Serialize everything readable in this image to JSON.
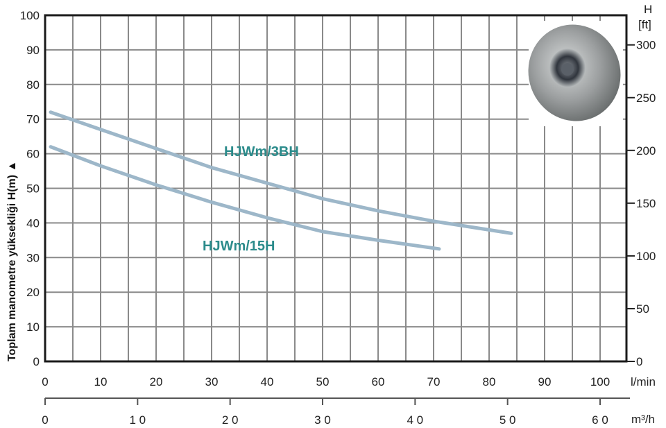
{
  "chart_data": {
    "type": "line",
    "ylabel": "Toplam manometre yüksekliği  H(m) ▲",
    "xlabel": "l/min",
    "x2label": "m³/h",
    "y2label_line1": "H",
    "y2label_line2": "[ft]",
    "xlim": [
      0,
      105
    ],
    "ylim": [
      0,
      100
    ],
    "x_ticks": [
      "0",
      "10",
      "20",
      "30",
      "40",
      "50",
      "60",
      "70",
      "80",
      "90",
      "100"
    ],
    "y_ticks": [
      "0",
      "10",
      "20",
      "30",
      "40",
      "50",
      "60",
      "70",
      "80",
      "90",
      "100"
    ],
    "y2_ticks": [
      "0",
      "50",
      "100",
      "150",
      "200",
      "250",
      "300"
    ],
    "x2_ticks": [
      "0",
      "1 0",
      "2 0",
      "3 0",
      "4 0",
      "5 0",
      "6 0"
    ],
    "x2_tick_values_m3h": [
      0,
      10,
      20,
      30,
      40,
      50,
      60
    ],
    "x2_full_scale_lmin": 100,
    "grid": true,
    "grid_x_step_lmin": 5,
    "grid_y_step_m": 10,
    "line_color": "#9db7c9",
    "label_color": "#2b8b8b",
    "series": [
      {
        "name": "HJWm/3BH",
        "x": [
          1,
          10,
          20,
          30,
          40,
          50,
          60,
          70,
          80,
          84
        ],
        "y": [
          72,
          67,
          61.5,
          56,
          51.5,
          47,
          43.5,
          40.5,
          38,
          37
        ]
      },
      {
        "name": "HJWm/15H",
        "x": [
          1,
          10,
          20,
          30,
          40,
          50,
          60,
          71
        ],
        "y": [
          62,
          56.5,
          51,
          46,
          41.5,
          37.5,
          35,
          32.5
        ]
      }
    ],
    "image": "pump-impeller-photo"
  }
}
